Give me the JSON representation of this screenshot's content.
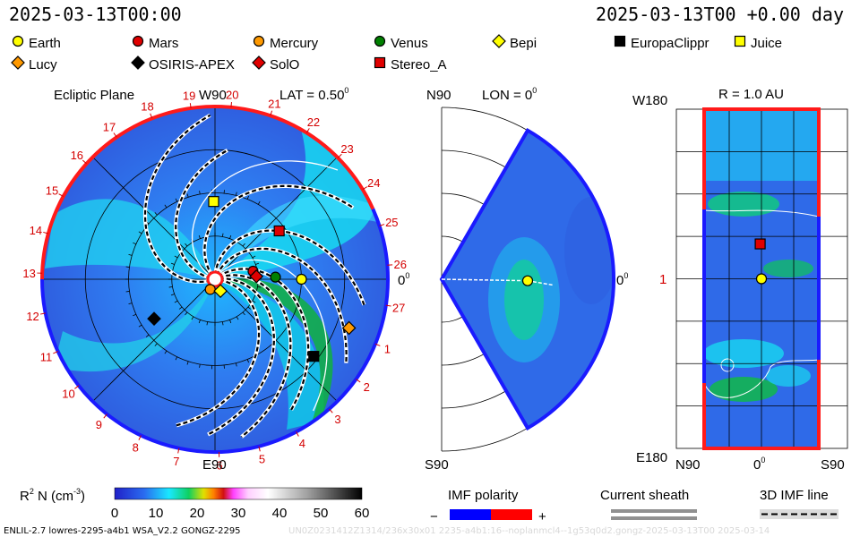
{
  "header": {
    "left_timestamp": "2025-03-13T00:00",
    "right_timestamp": "2025-03-13T00 +0.00 day"
  },
  "legend": [
    {
      "label": "Earth",
      "marker": "circle",
      "color": "#ffff00"
    },
    {
      "label": "Mars",
      "marker": "circle",
      "color": "#e00000"
    },
    {
      "label": "Mercury",
      "marker": "circle",
      "color": "#ff9900"
    },
    {
      "label": "Venus",
      "marker": "circle",
      "color": "#008000"
    },
    {
      "label": "Bepi",
      "marker": "diamond",
      "color": "#ffff00"
    },
    {
      "label": "EuropaClippr",
      "marker": "square",
      "color": "#000000"
    },
    {
      "label": "Juice",
      "marker": "square",
      "color": "#ffff00"
    },
    {
      "label": "Lucy",
      "marker": "diamond",
      "color": "#ff9900"
    },
    {
      "label": "OSIRIS-APEX",
      "marker": "diamond",
      "color": "#000000"
    },
    {
      "label": "SolO",
      "marker": "diamond",
      "color": "#e00000"
    },
    {
      "label": "Stereo_A",
      "marker": "square",
      "color": "#e00000"
    }
  ],
  "chart_data": [
    {
      "type": "heatmap",
      "title": "Ecliptic Plane",
      "subtitle": "LAT = 0.50",
      "subtitle_sup": "0",
      "quantity": "R2 N (cm-3)",
      "top_label": "W90",
      "bottom_label": "E90",
      "right_label": "0",
      "right_label_sup": "0",
      "carrington_ticks": [
        "13",
        "14",
        "15",
        "16",
        "17",
        "18",
        "19",
        "20",
        "21",
        "22",
        "23",
        "24",
        "25",
        "26",
        "27",
        "1",
        "2",
        "3",
        "4",
        "5",
        "6",
        "7",
        "8",
        "9",
        "10",
        "11",
        "12"
      ],
      "bodies": [
        {
          "name": "Earth",
          "r_au": 1.0,
          "lon_deg": 0.0
        },
        {
          "name": "Mars",
          "r_au": 0.45,
          "lon_deg": 12.0
        },
        {
          "name": "Mercury",
          "r_au": 0.13,
          "lon_deg": -115.0
        },
        {
          "name": "Venus",
          "r_au": 0.7,
          "lon_deg": 2.0
        },
        {
          "name": "Bepi",
          "r_au": 0.15,
          "lon_deg": -65.0
        },
        {
          "name": "EuropaClippr",
          "r_au": 1.45,
          "lon_deg": -38.0
        },
        {
          "name": "Juice",
          "r_au": 0.9,
          "lon_deg": 91.0
        },
        {
          "name": "Lucy",
          "r_au": 1.65,
          "lon_deg": -20.0
        },
        {
          "name": "OSIRIS-APEX",
          "r_au": 0.84,
          "lon_deg": -147.0
        },
        {
          "name": "SolO",
          "r_au": 0.48,
          "lon_deg": 4.0
        },
        {
          "name": "Stereo_A",
          "r_au": 0.93,
          "lon_deg": 37.0
        }
      ]
    },
    {
      "type": "heatmap",
      "title": "LON = 0",
      "title_sup": "0",
      "top_label": "N90",
      "bottom_label": "S90",
      "right_label": "0",
      "right_label_sup": "0",
      "bodies": [
        {
          "name": "Earth",
          "r_au": 1.0,
          "lat_deg": -1.0
        }
      ]
    },
    {
      "type": "heatmap",
      "title": "R = 1.0 AU",
      "y_top_label": "W180",
      "y_mid_label": "1",
      "y_bottom_label": "E180",
      "x_labels": [
        "N90",
        "0",
        "S90"
      ],
      "x_mid_sup": "0",
      "bodies": [
        {
          "name": "Earth",
          "lat_deg": 0.0,
          "lon_deg": 0.0
        },
        {
          "name": "Stereo_A",
          "lat_deg": 2.0,
          "lon_deg": 37.0
        }
      ]
    }
  ],
  "colorbar": {
    "label": "R",
    "label_sup": "2",
    "label_rest": " N (cm",
    "label_sup2": "-3",
    "label_close": ")",
    "ticks": [
      "0",
      "10",
      "20",
      "30",
      "40",
      "50",
      "60"
    ],
    "range": [
      0,
      60
    ]
  },
  "imf_polarity": {
    "title": "IMF polarity",
    "minus": "−",
    "plus": "+",
    "neg_color": "#0000ff",
    "pos_color": "#ff0000"
  },
  "current_sheath": {
    "title": "Current sheath"
  },
  "imf_line": {
    "title": "3D IMF line"
  },
  "footer": {
    "model_text": "ENLIL-2.7 lowres-2295-a4b1 WSA_V2.2 GONGZ-2295",
    "watermark_text": "UN0Z0231412Z1314/236x30x01 2235-a4b1:16--noplanmcl4--1g53q0d2.gongz-2025-03-13T00   2025-03-14"
  }
}
